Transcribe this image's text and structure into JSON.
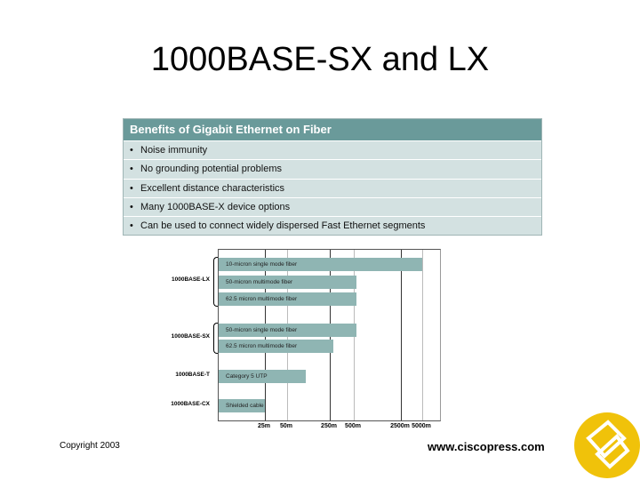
{
  "title": "1000BASE-SX and LX",
  "benefits": {
    "heading": "Benefits of Gigabit Ethernet on Fiber",
    "bullet": "•",
    "items": [
      "Noise immunity",
      "No grounding potential problems",
      "Excellent distance characteristics",
      "Many 1000BASE-X device options",
      "Can be used to connect widely dispersed Fast Ethernet segments"
    ]
  },
  "chart_data": {
    "type": "bar",
    "orientation": "horizontal",
    "ticks": [
      "25m",
      "50m",
      "250m",
      "500m",
      "2500m",
      "5000m"
    ],
    "tick_values": [
      25,
      50,
      250,
      500,
      2500,
      5000
    ],
    "groups": [
      {
        "name": "1000BASE-LX",
        "bars": [
          0,
          1,
          2
        ]
      },
      {
        "name": "1000BASE-SX",
        "bars": [
          3,
          4
        ]
      },
      {
        "name": "1000BASE-T",
        "bars": [
          5
        ]
      },
      {
        "name": "1000BASE-CX",
        "bars": [
          6
        ]
      }
    ],
    "bars": [
      {
        "label": "10-micron single mode fiber",
        "value": 5000
      },
      {
        "label": "50-micron multimode fiber",
        "value": 550
      },
      {
        "label": "62.5 micron multimode fiber",
        "value": 550
      },
      {
        "label": "50-micron single mode fiber",
        "value": 550
      },
      {
        "label": "62.5 micron multimode fiber",
        "value": 275
      },
      {
        "label": "Category 5 UTP",
        "value": 100
      },
      {
        "label": "Shielded cable",
        "value": 25
      }
    ],
    "bar_color": "#8fb5b3"
  },
  "footer": {
    "copyright": "Copyright 2003",
    "url": "www.ciscopress.com"
  },
  "colors": {
    "header": "#6a9a9a",
    "panel": "#d3e1e1",
    "logo": "#f0c20a"
  }
}
